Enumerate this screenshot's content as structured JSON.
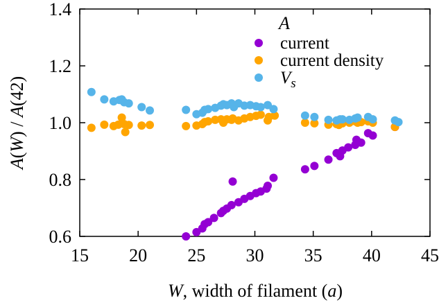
{
  "chart_data": {
    "type": "scatter",
    "title": "",
    "xlabel_parts": {
      "var": "W",
      "rest": ", width of filament (",
      "unit": "a",
      "close": ")"
    },
    "ylabel_parts": {
      "f1": "A",
      "p1": "(",
      "v1": "W",
      "p2": ") / ",
      "f2": "A",
      "p3": "(42)"
    },
    "xlim": [
      15,
      45
    ],
    "ylim": [
      0.6,
      1.4
    ],
    "xticks": [
      15,
      20,
      25,
      30,
      35,
      40,
      45
    ],
    "yticks": [
      0.6,
      0.8,
      1.0,
      1.2,
      1.4
    ],
    "ytick_labels": [
      "0.6",
      "0.8",
      "1.0",
      "1.2",
      "1.4"
    ],
    "legend_title": "A",
    "legend_position": "top-right",
    "grid": false,
    "series": [
      {
        "name": "current",
        "color": "#9400d3",
        "points": [
          [
            24.1,
            0.6
          ],
          [
            25.0,
            0.615
          ],
          [
            25.5,
            0.628
          ],
          [
            25.7,
            0.643
          ],
          [
            26.0,
            0.65
          ],
          [
            26.5,
            0.665
          ],
          [
            27.1,
            0.682
          ],
          [
            27.3,
            0.69
          ],
          [
            27.6,
            0.698
          ],
          [
            28.0,
            0.71
          ],
          [
            28.1,
            0.793
          ],
          [
            28.6,
            0.72
          ],
          [
            29.1,
            0.732
          ],
          [
            29.6,
            0.742
          ],
          [
            30.1,
            0.752
          ],
          [
            30.5,
            0.758
          ],
          [
            31.0,
            0.768
          ],
          [
            31.1,
            0.778
          ],
          [
            31.6,
            0.806
          ],
          [
            34.3,
            0.836
          ],
          [
            35.1,
            0.848
          ],
          [
            36.3,
            0.87
          ],
          [
            37.0,
            0.893
          ],
          [
            37.3,
            0.882
          ],
          [
            37.5,
            0.902
          ],
          [
            38.0,
            0.913
          ],
          [
            38.6,
            0.922
          ],
          [
            38.7,
            0.94
          ],
          [
            39.1,
            0.93
          ],
          [
            39.7,
            0.963
          ],
          [
            40.1,
            0.955
          ],
          [
            42.0,
            0.985
          ]
        ]
      },
      {
        "name": "current density",
        "color": "#ffa500",
        "points": [
          [
            16.0,
            0.982
          ],
          [
            17.1,
            0.993
          ],
          [
            17.9,
            0.988
          ],
          [
            18.3,
            0.993
          ],
          [
            18.6,
            1.018
          ],
          [
            18.8,
            0.995
          ],
          [
            18.9,
            0.967
          ],
          [
            19.2,
            0.992
          ],
          [
            20.3,
            0.99
          ],
          [
            21.0,
            0.992
          ],
          [
            24.1,
            0.988
          ],
          [
            25.0,
            0.99
          ],
          [
            25.5,
            0.995
          ],
          [
            25.7,
            1.002
          ],
          [
            26.0,
            1.005
          ],
          [
            26.6,
            1.01
          ],
          [
            27.1,
            1.012
          ],
          [
            27.3,
            1.0
          ],
          [
            27.6,
            1.012
          ],
          [
            28.0,
            1.01
          ],
          [
            28.1,
            1.015
          ],
          [
            28.6,
            1.008
          ],
          [
            29.1,
            1.015
          ],
          [
            29.6,
            1.02
          ],
          [
            30.1,
            1.024
          ],
          [
            30.5,
            1.028
          ],
          [
            31.1,
            1.008
          ],
          [
            31.2,
            1.02
          ],
          [
            31.7,
            1.025
          ],
          [
            34.3,
            1.0
          ],
          [
            35.1,
            0.998
          ],
          [
            36.3,
            0.993
          ],
          [
            37.0,
            0.995
          ],
          [
            37.2,
            0.992
          ],
          [
            37.5,
            0.998
          ],
          [
            38.1,
            1.0
          ],
          [
            38.6,
            1.005
          ],
          [
            38.8,
            1.0
          ],
          [
            39.1,
            1.002
          ],
          [
            39.7,
            1.005
          ],
          [
            40.1,
            1.0
          ],
          [
            42.0,
            0.985
          ]
        ]
      },
      {
        "name": "V_s",
        "label_main": "V",
        "label_sub": "s",
        "color": "#56b4e9",
        "points": [
          [
            16.0,
            1.108
          ],
          [
            17.1,
            1.082
          ],
          [
            17.9,
            1.075
          ],
          [
            18.4,
            1.08
          ],
          [
            18.6,
            1.082
          ],
          [
            18.8,
            1.072
          ],
          [
            19.2,
            1.068
          ],
          [
            20.3,
            1.055
          ],
          [
            21.0,
            1.043
          ],
          [
            24.1,
            1.045
          ],
          [
            25.0,
            1.03
          ],
          [
            25.5,
            1.035
          ],
          [
            25.7,
            1.045
          ],
          [
            26.0,
            1.048
          ],
          [
            26.6,
            1.052
          ],
          [
            27.1,
            1.06
          ],
          [
            27.3,
            1.065
          ],
          [
            27.6,
            1.062
          ],
          [
            28.0,
            1.068
          ],
          [
            28.2,
            1.055
          ],
          [
            28.6,
            1.068
          ],
          [
            29.1,
            1.06
          ],
          [
            29.6,
            1.062
          ],
          [
            30.1,
            1.058
          ],
          [
            30.5,
            1.055
          ],
          [
            31.1,
            1.062
          ],
          [
            31.6,
            1.048
          ],
          [
            34.3,
            1.025
          ],
          [
            35.1,
            1.02
          ],
          [
            36.3,
            1.01
          ],
          [
            37.0,
            1.008
          ],
          [
            37.3,
            1.012
          ],
          [
            37.5,
            1.012
          ],
          [
            38.1,
            1.01
          ],
          [
            38.6,
            1.015
          ],
          [
            38.8,
            1.018
          ],
          [
            39.7,
            1.02
          ],
          [
            40.1,
            1.012
          ],
          [
            42.0,
            1.008
          ],
          [
            42.3,
            1.002
          ]
        ]
      }
    ]
  }
}
